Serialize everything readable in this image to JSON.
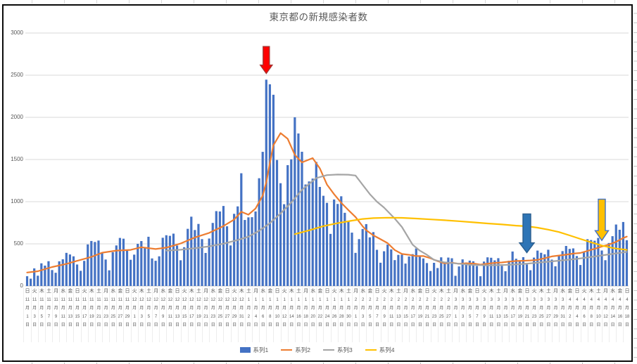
{
  "chart_data": {
    "type": "combo-bar-line",
    "title": "東京都の新規感染者数",
    "ylim": [
      0,
      3000
    ],
    "y_ticks": [
      0,
      500,
      1000,
      1500,
      2000,
      2500,
      3000
    ],
    "grid": true,
    "legend_position": "bottom",
    "x_count": 169,
    "x_label_every_n_days": 2,
    "x_label_format": "vertical label: weekday / m月 / d日",
    "x_labels": [
      [
        "日",
        "11",
        "1"
      ],
      [
        "火",
        "11",
        "3"
      ],
      [
        "木",
        "11",
        "5"
      ],
      [
        "土",
        "11",
        "7"
      ],
      [
        "月",
        "11",
        "9"
      ],
      [
        "水",
        "11",
        "11"
      ],
      [
        "金",
        "11",
        "13"
      ],
      [
        "日",
        "11",
        "15"
      ],
      [
        "火",
        "11",
        "17"
      ],
      [
        "木",
        "11",
        "19"
      ],
      [
        "土",
        "11",
        "21"
      ],
      [
        "月",
        "11",
        "23"
      ],
      [
        "水",
        "11",
        "25"
      ],
      [
        "金",
        "11",
        "27"
      ],
      [
        "日",
        "11",
        "29"
      ],
      [
        "火",
        "12",
        "1"
      ],
      [
        "木",
        "12",
        "3"
      ],
      [
        "土",
        "12",
        "5"
      ],
      [
        "月",
        "12",
        "7"
      ],
      [
        "水",
        "12",
        "9"
      ],
      [
        "金",
        "12",
        "11"
      ],
      [
        "日",
        "12",
        "13"
      ],
      [
        "火",
        "12",
        "15"
      ],
      [
        "木",
        "12",
        "17"
      ],
      [
        "土",
        "12",
        "19"
      ],
      [
        "月",
        "12",
        "21"
      ],
      [
        "水",
        "12",
        "23"
      ],
      [
        "金",
        "12",
        "25"
      ],
      [
        "日",
        "12",
        "27"
      ],
      [
        "火",
        "12",
        "29"
      ],
      [
        "木",
        "12",
        "31"
      ],
      [
        "土",
        "1",
        "2"
      ],
      [
        "月",
        "1",
        "4"
      ],
      [
        "水",
        "1",
        "6"
      ],
      [
        "金",
        "1",
        "8"
      ],
      [
        "日",
        "1",
        "10"
      ],
      [
        "火",
        "1",
        "12"
      ],
      [
        "木",
        "1",
        "14"
      ],
      [
        "土",
        "1",
        "16"
      ],
      [
        "月",
        "1",
        "18"
      ],
      [
        "水",
        "1",
        "20"
      ],
      [
        "金",
        "1",
        "22"
      ],
      [
        "日",
        "1",
        "24"
      ],
      [
        "火",
        "1",
        "26"
      ],
      [
        "木",
        "1",
        "28"
      ],
      [
        "土",
        "1",
        "30"
      ],
      [
        "月",
        "2",
        "1"
      ],
      [
        "水",
        "2",
        "3"
      ],
      [
        "金",
        "2",
        "5"
      ],
      [
        "日",
        "2",
        "7"
      ],
      [
        "火",
        "2",
        "9"
      ],
      [
        "木",
        "2",
        "11"
      ],
      [
        "土",
        "2",
        "13"
      ],
      [
        "月",
        "2",
        "15"
      ],
      [
        "水",
        "2",
        "17"
      ],
      [
        "金",
        "2",
        "19"
      ],
      [
        "日",
        "2",
        "21"
      ],
      [
        "火",
        "2",
        "23"
      ],
      [
        "木",
        "2",
        "25"
      ],
      [
        "土",
        "2",
        "27"
      ],
      [
        "月",
        "3",
        "1"
      ],
      [
        "水",
        "3",
        "3"
      ],
      [
        "金",
        "3",
        "5"
      ],
      [
        "日",
        "3",
        "7"
      ],
      [
        "火",
        "3",
        "9"
      ],
      [
        "木",
        "3",
        "11"
      ],
      [
        "土",
        "3",
        "13"
      ],
      [
        "月",
        "3",
        "15"
      ],
      [
        "水",
        "3",
        "17"
      ],
      [
        "金",
        "3",
        "19"
      ],
      [
        "日",
        "3",
        "21"
      ],
      [
        "火",
        "3",
        "23"
      ],
      [
        "木",
        "3",
        "25"
      ],
      [
        "土",
        "3",
        "27"
      ],
      [
        "月",
        "3",
        "29"
      ],
      [
        "水",
        "3",
        "31"
      ],
      [
        "金",
        "4",
        "2"
      ],
      [
        "日",
        "4",
        "4"
      ],
      [
        "火",
        "4",
        "6"
      ],
      [
        "木",
        "4",
        "8"
      ],
      [
        "土",
        "4",
        "10"
      ],
      [
        "月",
        "4",
        "12"
      ],
      [
        "水",
        "4",
        "14"
      ],
      [
        "金",
        "4",
        "16"
      ],
      [
        "日",
        "4",
        "18"
      ]
    ],
    "series": [
      {
        "name": "系列1",
        "type": "bar",
        "color": "#4472C4",
        "values": [
          116,
          87,
          209,
          122,
          269,
          242,
          294,
          189,
          157,
          293,
          317,
          393,
          374,
          352,
          255,
          180,
          298,
          493,
          534,
          522,
          539,
          391,
          314,
          186,
          401,
          481,
          570,
          561,
          418,
          311,
          372,
          500,
          533,
          449,
          584,
          327,
          299,
          352,
          572,
          602,
          595,
          621,
          480,
          305,
          460,
          678,
          822,
          664,
          736,
          556,
          392,
          563,
          748,
          888,
          884,
          949,
          708,
          481,
          856,
          944,
          1337,
          783,
          814,
          816,
          884,
          1278,
          1591,
          2447,
          2392,
          2268,
          1494,
          1219,
          970,
          1433,
          1502,
          2001,
          1809,
          1592,
          1204,
          1240,
          1274,
          1471,
          1175,
          1070,
          986,
          618,
          1026,
          973,
          1064,
          868,
          769,
          633,
          393,
          556,
          676,
          734,
          577,
          639,
          429,
          276,
          412,
          491,
          434,
          307,
          369,
          371,
          266,
          350,
          378,
          445,
          353,
          327,
          272,
          178,
          275,
          213,
          340,
          270,
          337,
          329,
          121,
          232,
          316,
          279,
          301,
          293,
          237,
          116,
          290,
          340,
          335,
          304,
          330,
          239,
          175,
          300,
          409,
          323,
          303,
          342,
          256,
          187,
          337,
          420,
          394,
          376,
          430,
          313,
          234,
          364,
          414,
          475,
          440,
          446,
          355,
          249,
          399,
          555,
          545,
          537,
          570,
          421,
          306,
          510,
          591,
          729,
          667,
          759,
          543
        ]
      },
      {
        "name": "系列2",
        "type": "line",
        "color": "#ED7D31",
        "points": [
          [
            1,
            160
          ],
          [
            4,
            175
          ],
          [
            8,
            225
          ],
          [
            12,
            262
          ],
          [
            15,
            298
          ],
          [
            19,
            345
          ],
          [
            22,
            395
          ],
          [
            26,
            420
          ],
          [
            30,
            428
          ],
          [
            33,
            460
          ],
          [
            37,
            438
          ],
          [
            40,
            455
          ],
          [
            44,
            504
          ],
          [
            48,
            576
          ],
          [
            52,
            630
          ],
          [
            56,
            711
          ],
          [
            59,
            788
          ],
          [
            61,
            880
          ],
          [
            63,
            846
          ],
          [
            65,
            919
          ],
          [
            67,
            1072
          ],
          [
            68,
            1230
          ],
          [
            69,
            1460
          ],
          [
            70,
            1668
          ],
          [
            72,
            1813
          ],
          [
            74,
            1746
          ],
          [
            76,
            1555
          ],
          [
            78,
            1466
          ],
          [
            81,
            1517
          ],
          [
            83,
            1395
          ],
          [
            85,
            1203
          ],
          [
            87,
            1089
          ],
          [
            89,
            987
          ],
          [
            91,
            901
          ],
          [
            93,
            818
          ],
          [
            95,
            708
          ],
          [
            96,
            661
          ],
          [
            98,
            601
          ],
          [
            100,
            555
          ],
          [
            102,
            508
          ],
          [
            104,
            427
          ],
          [
            106,
            380
          ],
          [
            108,
            370
          ],
          [
            110,
            355
          ],
          [
            112,
            356
          ],
          [
            114,
            329
          ],
          [
            116,
            295
          ],
          [
            118,
            268
          ],
          [
            120,
            277
          ],
          [
            122,
            263
          ],
          [
            124,
            269
          ],
          [
            126,
            267
          ],
          [
            128,
            253
          ],
          [
            130,
            265
          ],
          [
            132,
            274
          ],
          [
            134,
            279
          ],
          [
            136,
            289
          ],
          [
            138,
            297
          ],
          [
            140,
            299
          ],
          [
            142,
            303
          ],
          [
            144,
            310
          ],
          [
            146,
            330
          ],
          [
            148,
            351
          ],
          [
            150,
            362
          ],
          [
            152,
            372
          ],
          [
            154,
            384
          ],
          [
            156,
            392
          ],
          [
            158,
            417
          ],
          [
            160,
            441
          ],
          [
            162,
            468
          ],
          [
            164,
            492
          ],
          [
            166,
            523
          ],
          [
            168,
            569
          ],
          [
            169,
            586
          ]
        ]
      },
      {
        "name": "系列3",
        "type": "line",
        "color": "#A5A5A5",
        "points": [
          [
            40,
            420
          ],
          [
            44,
            430
          ],
          [
            48,
            448
          ],
          [
            52,
            470
          ],
          [
            56,
            502
          ],
          [
            60,
            545
          ],
          [
            63,
            585
          ],
          [
            66,
            655
          ],
          [
            69,
            745
          ],
          [
            72,
            860
          ],
          [
            75,
            990
          ],
          [
            78,
            1140
          ],
          [
            80,
            1210
          ],
          [
            82,
            1280
          ],
          [
            85,
            1315
          ],
          [
            88,
            1322
          ],
          [
            91,
            1320
          ],
          [
            93,
            1310
          ],
          [
            95,
            1200
          ],
          [
            97,
            1090
          ],
          [
            99,
            1000
          ],
          [
            101,
            930
          ],
          [
            104,
            800
          ],
          [
            106,
            700
          ],
          [
            109,
            490
          ],
          [
            111,
            420
          ],
          [
            113,
            370
          ],
          [
            115,
            310
          ],
          [
            118,
            280
          ],
          [
            121,
            268
          ],
          [
            125,
            252
          ],
          [
            130,
            245
          ],
          [
            135,
            250
          ],
          [
            140,
            262
          ],
          [
            145,
            280
          ],
          [
            150,
            300
          ],
          [
            155,
            322
          ],
          [
            160,
            350
          ],
          [
            164,
            375
          ],
          [
            169,
            405
          ]
        ]
      },
      {
        "name": "系列4",
        "type": "line",
        "color": "#FFC000",
        "points": [
          [
            76,
            615
          ],
          [
            80,
            660
          ],
          [
            84,
            710
          ],
          [
            88,
            745
          ],
          [
            92,
            775
          ],
          [
            95,
            795
          ],
          [
            98,
            805
          ],
          [
            102,
            810
          ],
          [
            106,
            808
          ],
          [
            110,
            800
          ],
          [
            114,
            790
          ],
          [
            118,
            780
          ],
          [
            122,
            768
          ],
          [
            126,
            755
          ],
          [
            130,
            742
          ],
          [
            134,
            730
          ],
          [
            138,
            716
          ],
          [
            141,
            708
          ],
          [
            144,
            692
          ],
          [
            147,
            668
          ],
          [
            150,
            640
          ],
          [
            153,
            600
          ],
          [
            156,
            558
          ],
          [
            159,
            518
          ],
          [
            162,
            480
          ],
          [
            165,
            452
          ],
          [
            167,
            438
          ],
          [
            169,
            428
          ]
        ]
      }
    ],
    "annotations": [
      {
        "id": "red-arrow",
        "shape": "block-arrow-down",
        "day": 68,
        "points_at_value": 2520,
        "top_value": 2840,
        "fill": "#FF0000",
        "outline": "#A43532"
      },
      {
        "id": "blue-arrow",
        "shape": "block-arrow-down",
        "day": 141,
        "points_at_value": 395,
        "top_value": 855,
        "fill": "#2E75B6",
        "outline": "#2A5E8F"
      },
      {
        "id": "yellow-arrow",
        "shape": "block-arrow-down",
        "day": 162,
        "points_at_value": 540,
        "top_value": 1030,
        "fill": "#FFC000",
        "outline": "#4472C4"
      }
    ]
  }
}
